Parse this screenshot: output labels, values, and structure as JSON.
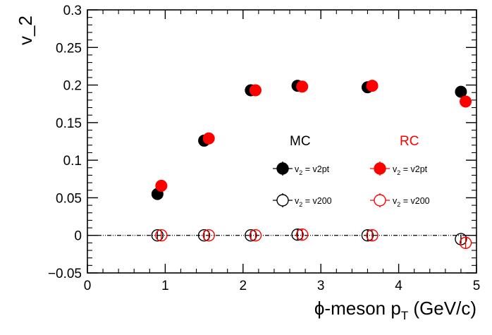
{
  "chart_data": {
    "type": "scatter",
    "title": "",
    "xlabel": {
      "main": "ϕ-meson p",
      "sub": "T",
      "tail": " (GeV/c)"
    },
    "ylabel": "v_2",
    "xlim": [
      0,
      5
    ],
    "ylim": [
      -0.05,
      0.3
    ],
    "xticks": [
      0,
      1,
      2,
      3,
      4,
      5
    ],
    "xtick_labels": [
      "0",
      "1",
      "2",
      "3",
      "4",
      "5"
    ],
    "yticks": [
      -0.05,
      0,
      0.05,
      0.1,
      0.15,
      0.2,
      0.25,
      0.3
    ],
    "ytick_labels": [
      "−0.05",
      "0",
      "0.05",
      "0.1",
      "0.15",
      "0.2",
      "0.25",
      "0.3"
    ],
    "reference_line": {
      "y": 0,
      "style": "dash-dot",
      "color": "#000000"
    },
    "legend": {
      "placement": "center-right",
      "group_headers": [
        {
          "label": "MC",
          "color": "#000000"
        },
        {
          "label": "RC",
          "color": "#ff0000"
        }
      ]
    },
    "series": [
      {
        "name": "v2pt",
        "group": "MC",
        "marker": "filled",
        "color": "#000000",
        "x": [
          0.9,
          1.5,
          2.1,
          2.7,
          3.6,
          4.8
        ],
        "y": [
          0.055,
          0.126,
          0.193,
          0.199,
          0.197,
          0.191
        ],
        "err": [
          0.002,
          0.002,
          0.002,
          0.002,
          0.002,
          0.003
        ]
      },
      {
        "name": "v2pt",
        "group": "RC",
        "marker": "filled",
        "color": "#ff0000",
        "x": [
          0.95,
          1.56,
          2.16,
          2.76,
          3.66,
          4.86
        ],
        "y": [
          0.066,
          0.129,
          0.193,
          0.198,
          0.199,
          0.178
        ],
        "err": [
          0.003,
          0.003,
          0.003,
          0.004,
          0.004,
          0.007
        ]
      },
      {
        "name": "v200",
        "group": "MC",
        "marker": "open",
        "color": "#000000",
        "x": [
          0.9,
          1.5,
          2.1,
          2.7,
          3.6,
          4.8
        ],
        "y": [
          0.0,
          0.0,
          0.0,
          0.001,
          0.0,
          -0.005
        ],
        "err": [
          0.006,
          0.006,
          0.006,
          0.007,
          0.007,
          0.006
        ]
      },
      {
        "name": "v200",
        "group": "RC",
        "marker": "open",
        "color": "#ff0000",
        "x": [
          0.95,
          1.56,
          2.16,
          2.76,
          3.66,
          4.86
        ],
        "y": [
          0.0,
          0.0,
          0.0,
          0.001,
          0.0,
          -0.01
        ],
        "err": [
          0.006,
          0.006,
          0.006,
          0.007,
          0.007,
          0.008
        ]
      }
    ],
    "legend_label_prefix": {
      "main": "v",
      "sub": "2",
      "tail": " = "
    }
  }
}
